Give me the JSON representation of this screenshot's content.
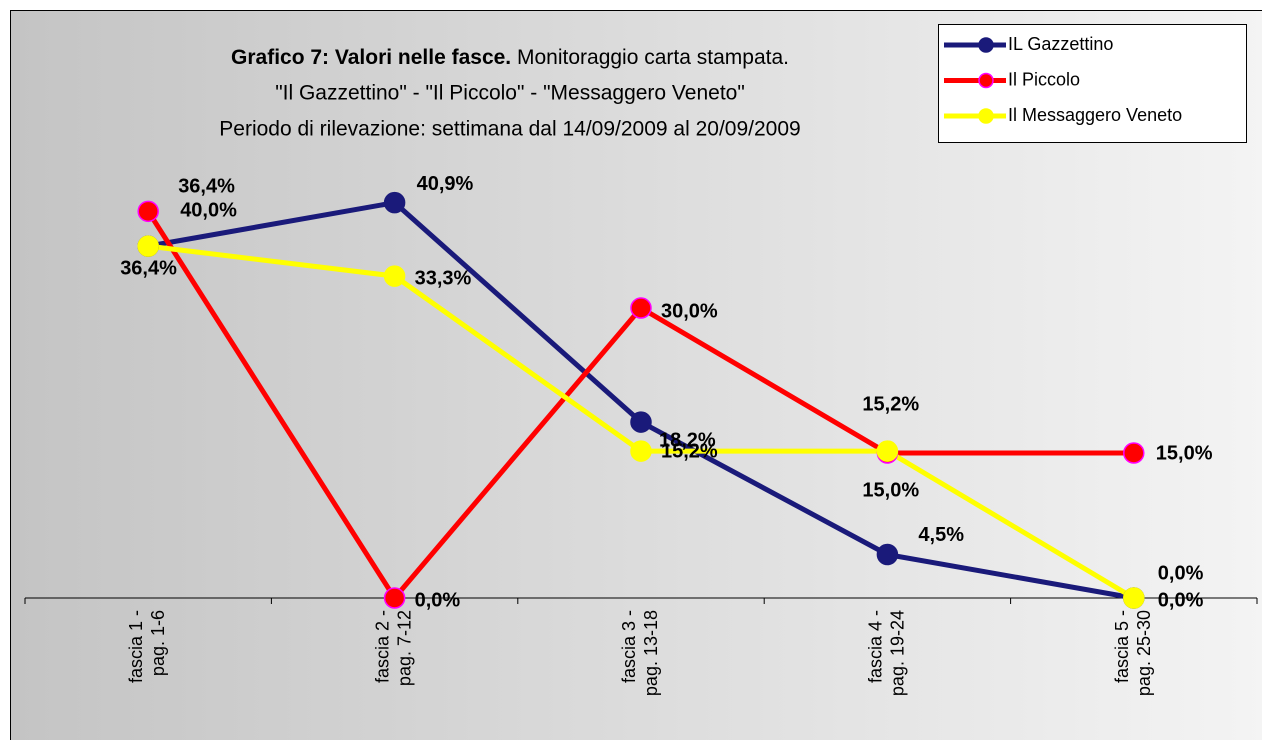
{
  "chart_data": {
    "type": "line",
    "title": "Grafico 7: Valori nelle fasce.",
    "subtitle": [
      "Monitoraggio carta stampata.",
      "\"Il Gazzettino\" - \"Il Piccolo\" - \"Messaggero Veneto\"",
      "Periodo di rilevazione: settimana dal 14/09/2009 al 20/09/2009"
    ],
    "categories": [
      "fascia 1 - pag. 1-6",
      "fascia 2 - pag. 7-12",
      "fascia 3 - pag. 13-18",
      "fascia 4 - pag. 19-24",
      "fascia 5 - pag. 25-30"
    ],
    "ylim": [
      0,
      45
    ],
    "legend": "top-right",
    "series": [
      {
        "name": "IL Gazzettino",
        "color": "#1a1a7a",
        "marker_edge": "#1a1a7a",
        "values": [
          36.4,
          40.9,
          18.2,
          4.5,
          0.0
        ],
        "value_labels": [
          "36,4%",
          "40,9%",
          "18,2%",
          "4,5%",
          "0,0%"
        ]
      },
      {
        "name": "Il Piccolo",
        "color": "#ff0000",
        "marker_edge": "#ff00ff",
        "values": [
          40.0,
          0.0,
          30.0,
          15.0,
          15.0
        ],
        "value_labels": [
          "40,0%",
          "0,0%",
          "30,0%",
          "15,0%",
          "15,0%"
        ]
      },
      {
        "name": "Il Messaggero Veneto",
        "color": "#ffff00",
        "marker_edge": "#ffff00",
        "values": [
          36.4,
          33.3,
          15.2,
          15.2,
          0.0
        ],
        "value_labels": [
          "36,4%",
          "33,3%",
          "15,2%",
          "15,2%",
          "0,0%"
        ]
      }
    ]
  }
}
